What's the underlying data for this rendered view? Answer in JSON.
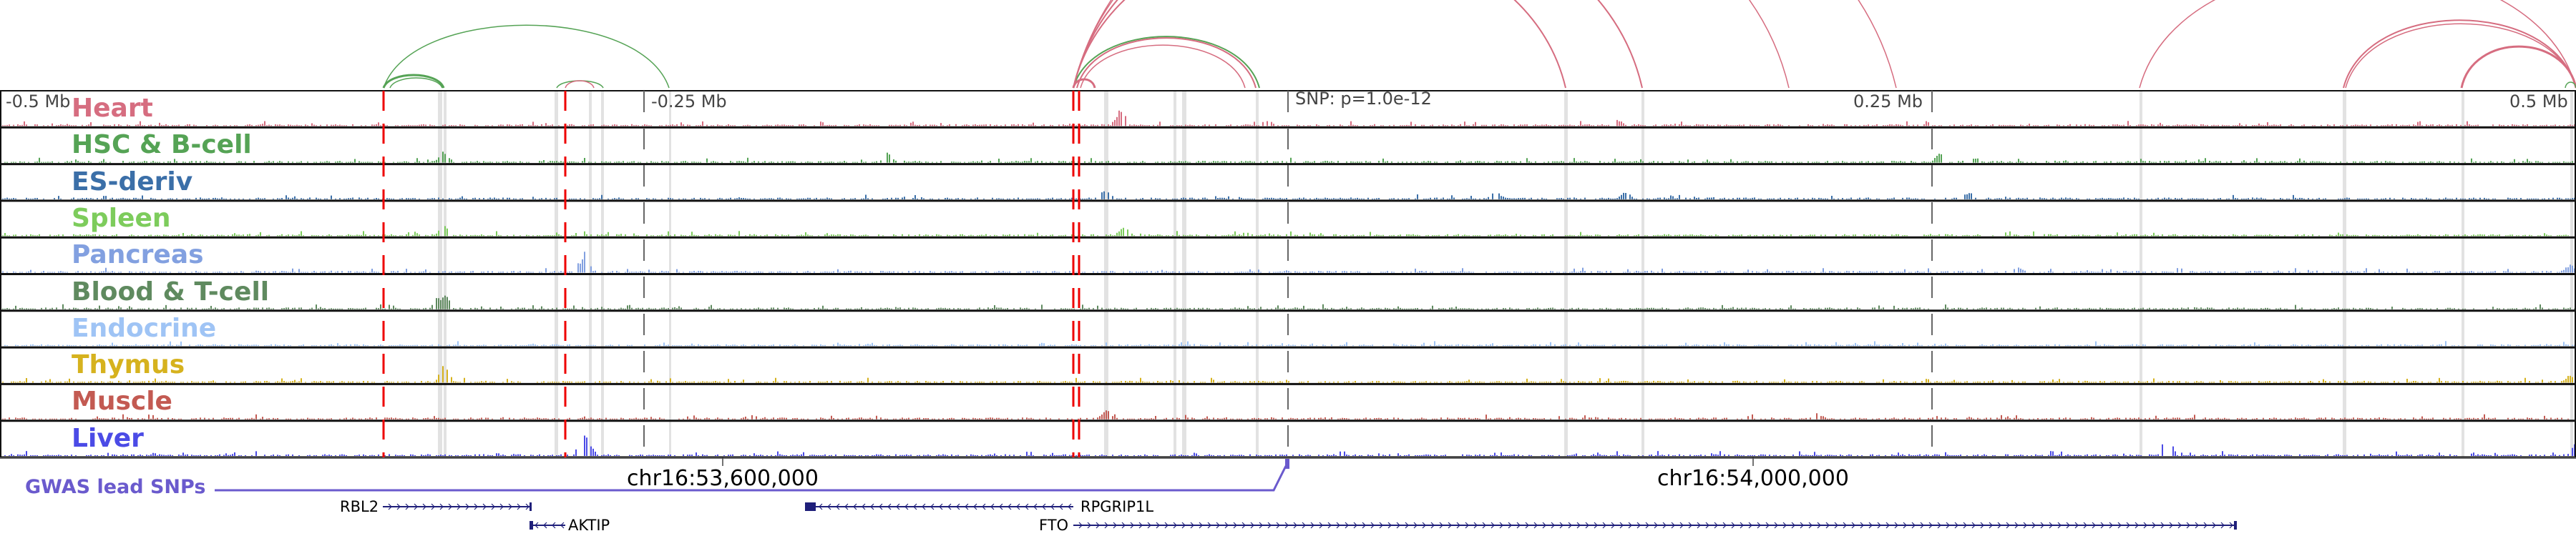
{
  "tracks": [
    {
      "label": "Heart",
      "color": "#d66d80"
    },
    {
      "label": "HSC & B-cell",
      "color": "#55a355"
    },
    {
      "label": "ES-deriv",
      "color": "#3b6fa8"
    },
    {
      "label": "Spleen",
      "color": "#7dcc5c"
    },
    {
      "label": "Pancreas",
      "color": "#82a0e0"
    },
    {
      "label": "Blood & T-cell",
      "color": "#5f8a5f"
    },
    {
      "label": "Endocrine",
      "color": "#9fc4f5"
    },
    {
      "label": "Thymus",
      "color": "#d6b21e"
    },
    {
      "label": "Muscle",
      "color": "#c35a52"
    },
    {
      "label": "Liver",
      "color": "#4b4be6"
    }
  ],
  "axis": {
    "minus_half": "-0.5 Mb",
    "minus_quarter": "-0.25 Mb",
    "snp": "SNP: p=1.0e-12",
    "plus_quarter": "0.25 Mb",
    "plus_half": "0.5 Mb"
  },
  "coords": {
    "left": "chr16:53,600,000",
    "right": "chr16:54,000,000"
  },
  "gwas": {
    "label": "GWAS lead SNPs",
    "color": "#6a5acd"
  },
  "genes": [
    {
      "name": "RBL2",
      "strand": "+"
    },
    {
      "name": "AKTIP",
      "strand": "-"
    },
    {
      "name": "RPGRIP1L",
      "strand": "-"
    },
    {
      "name": "FTO",
      "strand": "+"
    }
  ]
}
